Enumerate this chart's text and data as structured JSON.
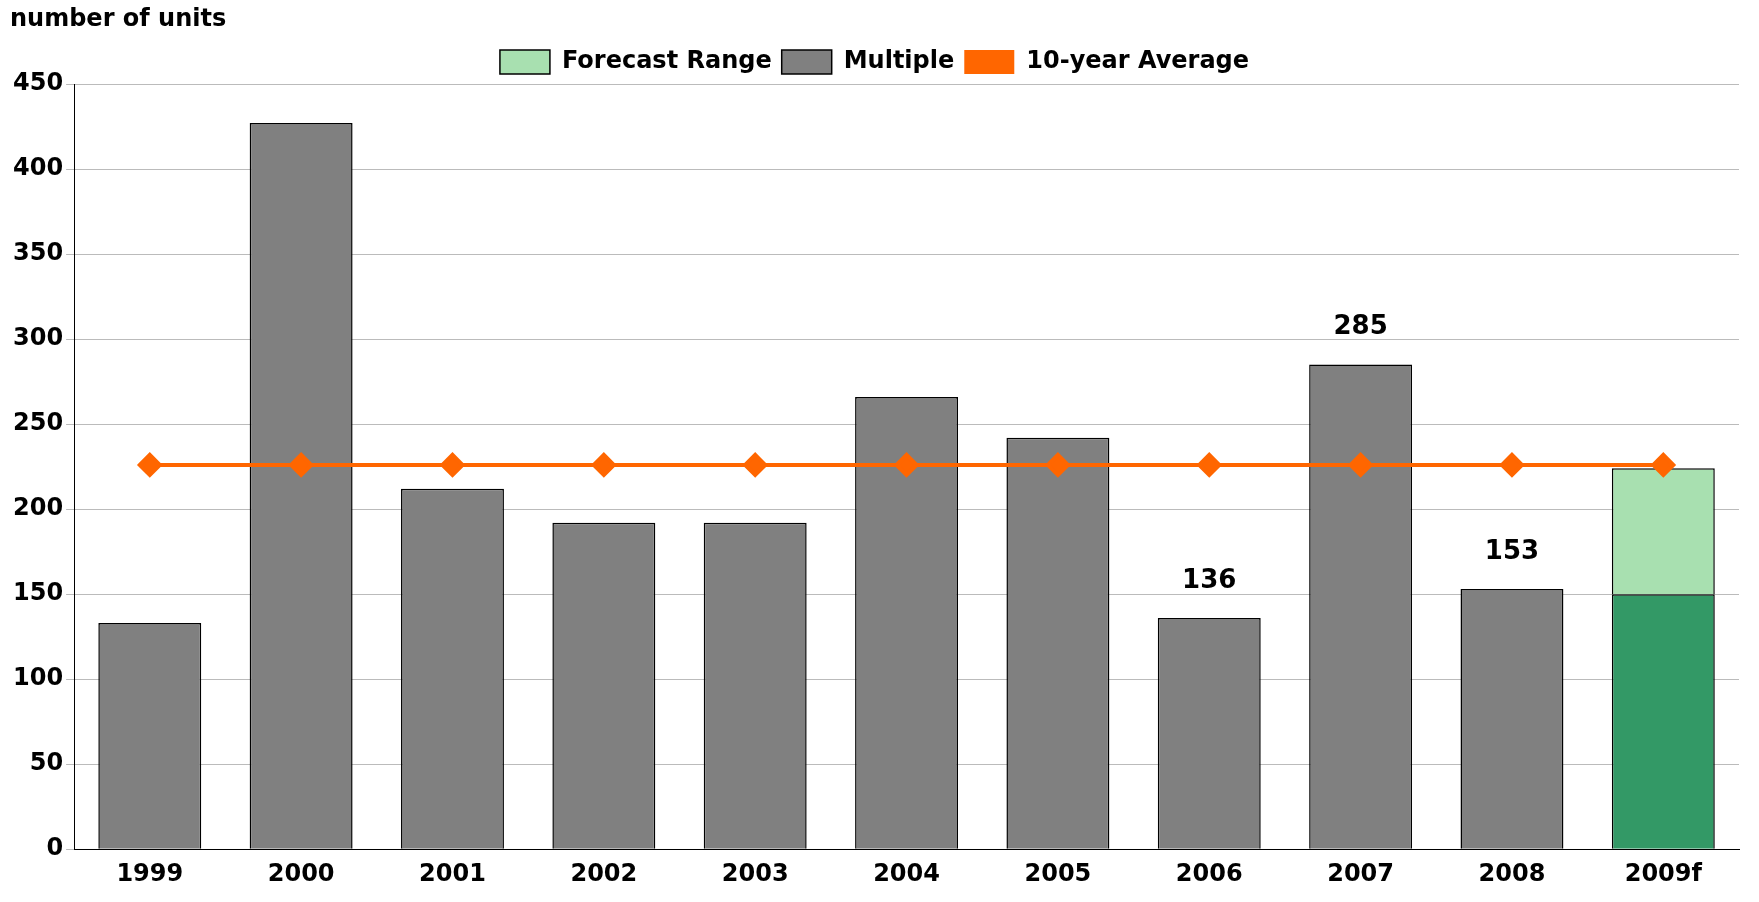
{
  "chart_data": {
    "type": "bar",
    "ylabel": "number of units",
    "stacked": true,
    "categories": [
      "1999",
      "2000",
      "2001",
      "2002",
      "2003",
      "2004",
      "2005",
      "2006",
      "2007",
      "2008",
      "2009f"
    ],
    "series": [
      {
        "name": "Multiple",
        "color": "#808080",
        "colors": [
          "#808080",
          "#808080",
          "#808080",
          "#808080",
          "#808080",
          "#808080",
          "#808080",
          "#808080",
          "#808080",
          "#808080",
          "#339966"
        ],
        "values": [
          133,
          427,
          212,
          192,
          192,
          266,
          242,
          136,
          285,
          153,
          150
        ],
        "value_labels": [
          null,
          null,
          null,
          null,
          null,
          null,
          null,
          "136",
          "285",
          "153",
          null
        ]
      },
      {
        "name": "Forecast Range",
        "color": "#a8e0b0",
        "values": [
          null,
          null,
          null,
          null,
          null,
          null,
          null,
          null,
          null,
          null,
          74
        ]
      },
      {
        "name": "10-year Average",
        "type": "line",
        "color": "#ff6600",
        "marker": "diamond",
        "line_style": "solid",
        "values": [
          226,
          226,
          226,
          226,
          226,
          226,
          226,
          226,
          226,
          226,
          226
        ]
      }
    ],
    "ylim": [
      0,
      450
    ],
    "yticks": [
      0,
      50,
      100,
      150,
      200,
      250,
      300,
      350,
      400,
      450
    ],
    "grid": "y",
    "legend": "top"
  }
}
